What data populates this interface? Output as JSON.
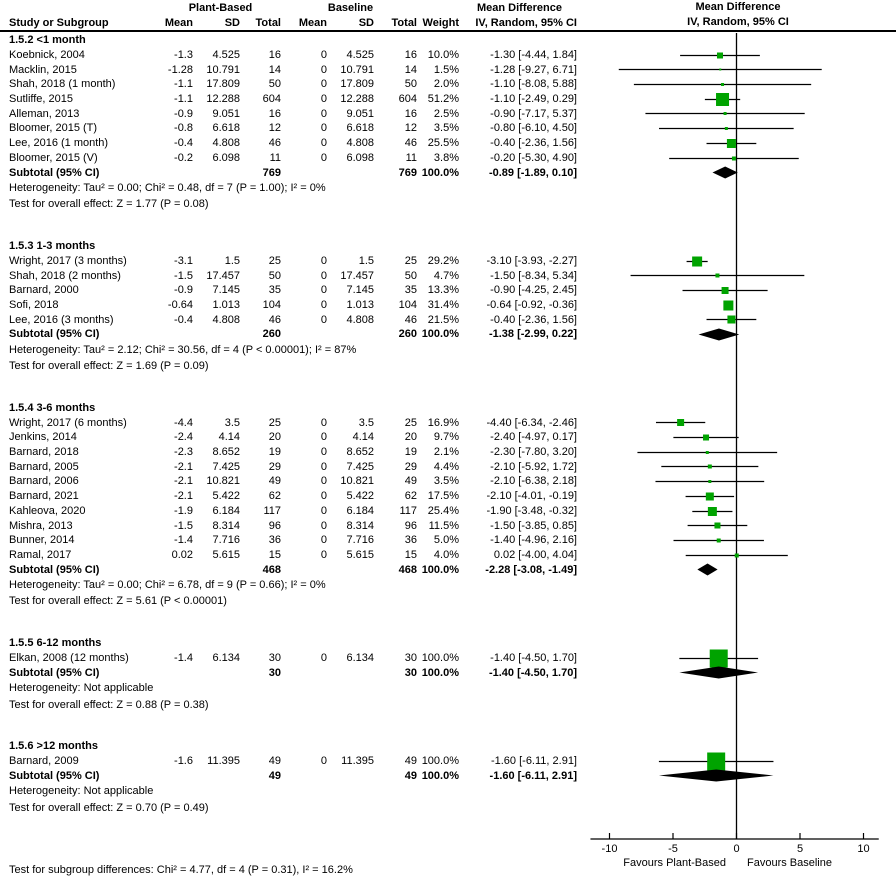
{
  "header": {
    "study_col": "Study or Subgroup",
    "group1": "Plant-Based",
    "group2": "Baseline",
    "mean": "Mean",
    "sd": "SD",
    "total": "Total",
    "weight": "Weight",
    "md_title": "Mean Difference",
    "md_method": "IV, Random, 95% CI"
  },
  "chart_data": {
    "type": "forest",
    "effect_measure": "Mean Difference",
    "method": "IV, Random, 95% CI",
    "marker_color": "#00a300",
    "axis": {
      "ticks": [
        -10,
        -5,
        0,
        5,
        10
      ],
      "min": -11.5,
      "max": 11.2,
      "favours_left": "Favours Plant-Based",
      "favours_right": "Favours Baseline"
    },
    "subgroups": [
      {
        "label": "1.5.2 <1 month",
        "studies": [
          {
            "name": "Koebnick, 2004",
            "mean1": "-1.3",
            "sd1": "4.525",
            "total1": "16",
            "mean2": "0",
            "sd2": "4.525",
            "total2": "16",
            "weight": "10.0%",
            "ci_text": "-1.30 [-4.44, 1.84]",
            "est": -1.3,
            "lo": -4.44,
            "hi": 1.84
          },
          {
            "name": "Macklin, 2015",
            "mean1": "-1.28",
            "sd1": "10.791",
            "total1": "14",
            "mean2": "0",
            "sd2": "10.791",
            "total2": "14",
            "weight": "1.5%",
            "ci_text": "-1.28 [-9.27, 6.71]",
            "est": -1.28,
            "lo": -9.27,
            "hi": 6.71
          },
          {
            "name": "Shah, 2018 (1 month)",
            "mean1": "-1.1",
            "sd1": "17.809",
            "total1": "50",
            "mean2": "0",
            "sd2": "17.809",
            "total2": "50",
            "weight": "2.0%",
            "ci_text": "-1.10 [-8.08, 5.88]",
            "est": -1.1,
            "lo": -8.08,
            "hi": 5.88
          },
          {
            "name": "Sutliffe, 2015",
            "mean1": "-1.1",
            "sd1": "12.288",
            "total1": "604",
            "mean2": "0",
            "sd2": "12.288",
            "total2": "604",
            "weight": "51.2%",
            "ci_text": "-1.10 [-2.49, 0.29]",
            "est": -1.1,
            "lo": -2.49,
            "hi": 0.29
          },
          {
            "name": "Alleman, 2013",
            "mean1": "-0.9",
            "sd1": "9.051",
            "total1": "16",
            "mean2": "0",
            "sd2": "9.051",
            "total2": "16",
            "weight": "2.5%",
            "ci_text": "-0.90 [-7.17, 5.37]",
            "est": -0.9,
            "lo": -7.17,
            "hi": 5.37
          },
          {
            "name": "Bloomer, 2015 (T)",
            "mean1": "-0.8",
            "sd1": "6.618",
            "total1": "12",
            "mean2": "0",
            "sd2": "6.618",
            "total2": "12",
            "weight": "3.5%",
            "ci_text": "-0.80 [-6.10, 4.50]",
            "est": -0.8,
            "lo": -6.1,
            "hi": 4.5
          },
          {
            "name": "Lee, 2016 (1 month)",
            "mean1": "-0.4",
            "sd1": "4.808",
            "total1": "46",
            "mean2": "0",
            "sd2": "4.808",
            "total2": "46",
            "weight": "25.5%",
            "ci_text": "-0.40 [-2.36, 1.56]",
            "est": -0.4,
            "lo": -2.36,
            "hi": 1.56
          },
          {
            "name": "Bloomer, 2015 (V)",
            "mean1": "-0.2",
            "sd1": "6.098",
            "total1": "11",
            "mean2": "0",
            "sd2": "6.098",
            "total2": "11",
            "weight": "3.8%",
            "ci_text": "-0.20 [-5.30, 4.90]",
            "est": -0.2,
            "lo": -5.3,
            "hi": 4.9
          }
        ],
        "subtotal": {
          "label": "Subtotal (95% CI)",
          "total1": "769",
          "total2": "769",
          "weight": "100.0%",
          "ci_text": "-0.89 [-1.89, 0.10]",
          "est": -0.89,
          "lo": -1.89,
          "hi": 0.1
        },
        "heterogeneity": "Heterogeneity: Tau² = 0.00; Chi² = 0.48, df = 7 (P = 1.00); I² = 0%",
        "overall": "Test for overall effect: Z = 1.77 (P = 0.08)"
      },
      {
        "label": "1.5.3 1-3 months",
        "studies": [
          {
            "name": "Wright, 2017 (3 months)",
            "mean1": "-3.1",
            "sd1": "1.5",
            "total1": "25",
            "mean2": "0",
            "sd2": "1.5",
            "total2": "25",
            "weight": "29.2%",
            "ci_text": "-3.10 [-3.93, -2.27]",
            "est": -3.1,
            "lo": -3.93,
            "hi": -2.27
          },
          {
            "name": "Shah, 2018 (2 months)",
            "mean1": "-1.5",
            "sd1": "17.457",
            "total1": "50",
            "mean2": "0",
            "sd2": "17.457",
            "total2": "50",
            "weight": "4.7%",
            "ci_text": "-1.50 [-8.34, 5.34]",
            "est": -1.5,
            "lo": -8.34,
            "hi": 5.34
          },
          {
            "name": "Barnard, 2000",
            "mean1": "-0.9",
            "sd1": "7.145",
            "total1": "35",
            "mean2": "0",
            "sd2": "7.145",
            "total2": "35",
            "weight": "13.3%",
            "ci_text": "-0.90 [-4.25, 2.45]",
            "est": -0.9,
            "lo": -4.25,
            "hi": 2.45
          },
          {
            "name": "Sofi, 2018",
            "mean1": "-0.64",
            "sd1": "1.013",
            "total1": "104",
            "mean2": "0",
            "sd2": "1.013",
            "total2": "104",
            "weight": "31.4%",
            "ci_text": "-0.64 [-0.92, -0.36]",
            "est": -0.64,
            "lo": -0.92,
            "hi": -0.36
          },
          {
            "name": "Lee, 2016 (3 months)",
            "mean1": "-0.4",
            "sd1": "4.808",
            "total1": "46",
            "mean2": "0",
            "sd2": "4.808",
            "total2": "46",
            "weight": "21.5%",
            "ci_text": "-0.40 [-2.36, 1.56]",
            "est": -0.4,
            "lo": -2.36,
            "hi": 1.56
          }
        ],
        "subtotal": {
          "label": "Subtotal (95% CI)",
          "total1": "260",
          "total2": "260",
          "weight": "100.0%",
          "ci_text": "-1.38 [-2.99, 0.22]",
          "est": -1.38,
          "lo": -2.99,
          "hi": 0.22
        },
        "heterogeneity": "Heterogeneity: Tau² = 2.12; Chi² = 30.56, df = 4 (P < 0.00001); I² = 87%",
        "overall": "Test for overall effect: Z = 1.69 (P = 0.09)"
      },
      {
        "label": "1.5.4 3-6 months",
        "studies": [
          {
            "name": "Wright, 2017 (6 months)",
            "mean1": "-4.4",
            "sd1": "3.5",
            "total1": "25",
            "mean2": "0",
            "sd2": "3.5",
            "total2": "25",
            "weight": "16.9%",
            "ci_text": "-4.40 [-6.34, -2.46]",
            "est": -4.4,
            "lo": -6.34,
            "hi": -2.46
          },
          {
            "name": "Jenkins, 2014",
            "mean1": "-2.4",
            "sd1": "4.14",
            "total1": "20",
            "mean2": "0",
            "sd2": "4.14",
            "total2": "20",
            "weight": "9.7%",
            "ci_text": "-2.40 [-4.97, 0.17]",
            "est": -2.4,
            "lo": -4.97,
            "hi": 0.17
          },
          {
            "name": "Barnard, 2018",
            "mean1": "-2.3",
            "sd1": "8.652",
            "total1": "19",
            "mean2": "0",
            "sd2": "8.652",
            "total2": "19",
            "weight": "2.1%",
            "ci_text": "-2.30 [-7.80, 3.20]",
            "est": -2.3,
            "lo": -7.8,
            "hi": 3.2
          },
          {
            "name": "Barnard, 2005",
            "mean1": "-2.1",
            "sd1": "7.425",
            "total1": "29",
            "mean2": "0",
            "sd2": "7.425",
            "total2": "29",
            "weight": "4.4%",
            "ci_text": "-2.10 [-5.92, 1.72]",
            "est": -2.1,
            "lo": -5.92,
            "hi": 1.72
          },
          {
            "name": "Barnard, 2006",
            "mean1": "-2.1",
            "sd1": "10.821",
            "total1": "49",
            "mean2": "0",
            "sd2": "10.821",
            "total2": "49",
            "weight": "3.5%",
            "ci_text": "-2.10 [-6.38, 2.18]",
            "est": -2.1,
            "lo": -6.38,
            "hi": 2.18
          },
          {
            "name": "Barnard, 2021",
            "mean1": "-2.1",
            "sd1": "5.422",
            "total1": "62",
            "mean2": "0",
            "sd2": "5.422",
            "total2": "62",
            "weight": "17.5%",
            "ci_text": "-2.10 [-4.01, -0.19]",
            "est": -2.1,
            "lo": -4.01,
            "hi": -0.19
          },
          {
            "name": "Kahleova, 2020",
            "mean1": "-1.9",
            "sd1": "6.184",
            "total1": "117",
            "mean2": "0",
            "sd2": "6.184",
            "total2": "117",
            "weight": "25.4%",
            "ci_text": "-1.90 [-3.48, -0.32]",
            "est": -1.9,
            "lo": -3.48,
            "hi": -0.32
          },
          {
            "name": "Mishra, 2013",
            "mean1": "-1.5",
            "sd1": "8.314",
            "total1": "96",
            "mean2": "0",
            "sd2": "8.314",
            "total2": "96",
            "weight": "11.5%",
            "ci_text": "-1.50 [-3.85, 0.85]",
            "est": -1.5,
            "lo": -3.85,
            "hi": 0.85
          },
          {
            "name": "Bunner, 2014",
            "mean1": "-1.4",
            "sd1": "7.716",
            "total1": "36",
            "mean2": "0",
            "sd2": "7.716",
            "total2": "36",
            "weight": "5.0%",
            "ci_text": "-1.40 [-4.96, 2.16]",
            "est": -1.4,
            "lo": -4.96,
            "hi": 2.16
          },
          {
            "name": "Ramal, 2017",
            "mean1": "0.02",
            "sd1": "5.615",
            "total1": "15",
            "mean2": "0",
            "sd2": "5.615",
            "total2": "15",
            "weight": "4.0%",
            "ci_text": "0.02 [-4.00, 4.04]",
            "est": 0.02,
            "lo": -4.0,
            "hi": 4.04
          }
        ],
        "subtotal": {
          "label": "Subtotal (95% CI)",
          "total1": "468",
          "total2": "468",
          "weight": "100.0%",
          "ci_text": "-2.28 [-3.08, -1.49]",
          "est": -2.28,
          "lo": -3.08,
          "hi": -1.49
        },
        "heterogeneity": "Heterogeneity: Tau² = 0.00; Chi² = 6.78, df = 9 (P = 0.66); I² = 0%",
        "overall": "Test for overall effect: Z = 5.61 (P < 0.00001)"
      },
      {
        "label": "1.5.5 6-12 months",
        "studies": [
          {
            "name": "Elkan, 2008 (12 months)",
            "mean1": "-1.4",
            "sd1": "6.134",
            "total1": "30",
            "mean2": "0",
            "sd2": "6.134",
            "total2": "30",
            "weight": "100.0%",
            "ci_text": "-1.40 [-4.50, 1.70]",
            "est": -1.4,
            "lo": -4.5,
            "hi": 1.7
          }
        ],
        "subtotal": {
          "label": "Subtotal (95% CI)",
          "total1": "30",
          "total2": "30",
          "weight": "100.0%",
          "ci_text": "-1.40 [-4.50, 1.70]",
          "est": -1.4,
          "lo": -4.5,
          "hi": 1.7
        },
        "heterogeneity": "Heterogeneity: Not applicable",
        "overall": "Test for overall effect: Z = 0.88 (P = 0.38)"
      },
      {
        "label": "1.5.6 >12 months",
        "studies": [
          {
            "name": "Barnard, 2009",
            "mean1": "-1.6",
            "sd1": "11.395",
            "total1": "49",
            "mean2": "0",
            "sd2": "11.395",
            "total2": "49",
            "weight": "100.0%",
            "ci_text": "-1.60 [-6.11, 2.91]",
            "est": -1.6,
            "lo": -6.11,
            "hi": 2.91
          }
        ],
        "subtotal": {
          "label": "Subtotal (95% CI)",
          "total1": "49",
          "total2": "49",
          "weight": "100.0%",
          "ci_text": "-1.60 [-6.11, 2.91]",
          "est": -1.6,
          "lo": -6.11,
          "hi": 2.91
        },
        "heterogeneity": "Heterogeneity: Not applicable",
        "overall": "Test for overall effect: Z = 0.70 (P = 0.49)"
      }
    ],
    "footer": "Test for subgroup differences: Chi² = 4.77, df = 4 (P = 0.31), I² = 16.2%"
  }
}
